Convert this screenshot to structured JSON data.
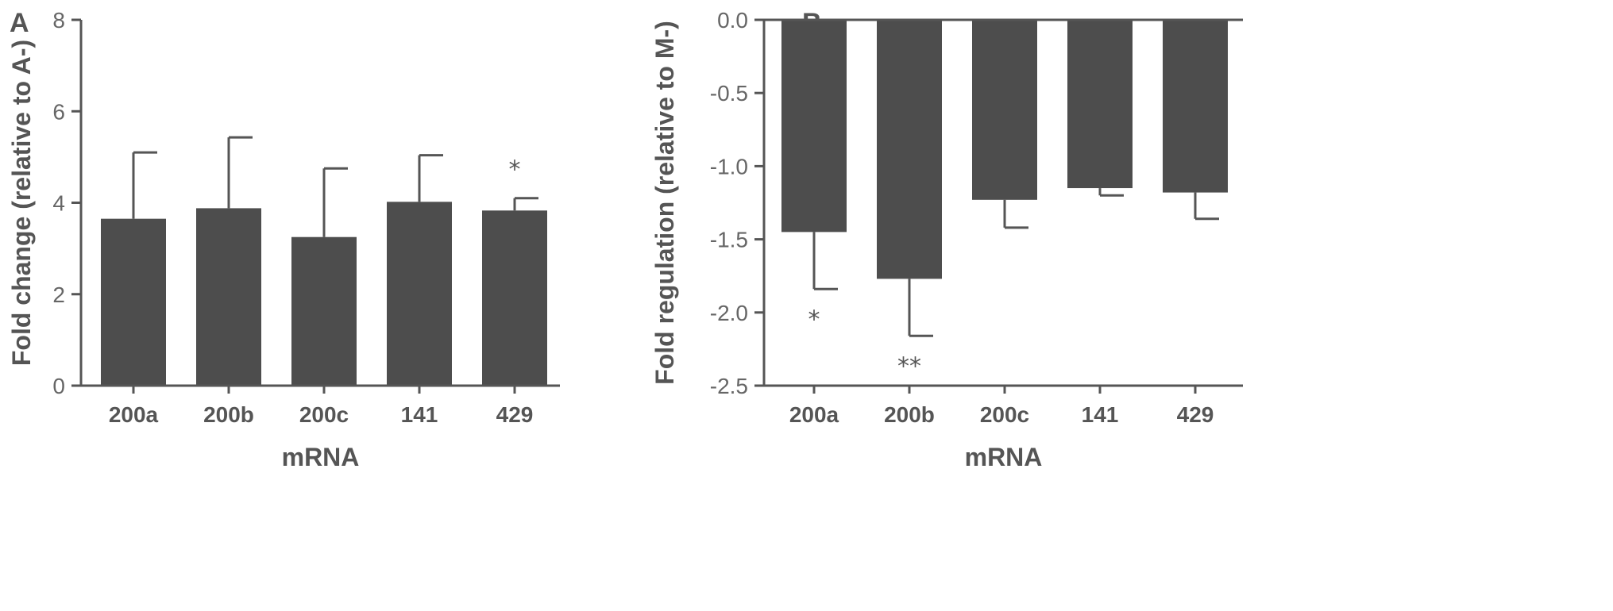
{
  "chart_data": [
    {
      "panel": "A",
      "type": "bar",
      "categories": [
        "200a",
        "200b",
        "200c",
        "141",
        "429"
      ],
      "values": [
        3.65,
        3.88,
        3.25,
        4.02,
        3.83
      ],
      "errors": [
        1.45,
        1.55,
        1.5,
        1.02,
        0.27
      ],
      "significance": [
        "",
        "",
        "",
        "",
        "*"
      ],
      "xlabel": "mRNA",
      "ylabel": "Fold change (relative to A-)",
      "ylim": [
        0,
        8
      ],
      "yticks": [
        0,
        2,
        4,
        6,
        8
      ],
      "ytick_labels": [
        "0",
        "2",
        "4",
        "6",
        "8"
      ],
      "bar_color": "#4d4d4d"
    },
    {
      "panel": "B",
      "type": "bar",
      "categories": [
        "200a",
        "200b",
        "200c",
        "141",
        "429"
      ],
      "values": [
        -1.45,
        -1.77,
        -1.23,
        -1.15,
        -1.18
      ],
      "errors": [
        0.39,
        0.39,
        0.19,
        0.05,
        0.18
      ],
      "significance": [
        "*",
        "**",
        "",
        "",
        ""
      ],
      "xlabel": "mRNA",
      "ylabel": "Fold regulation (relative to M-)",
      "ylim": [
        -2.5,
        0
      ],
      "yticks": [
        0,
        -0.5,
        -1,
        -1.5,
        -2,
        -2.5
      ],
      "ytick_labels": [
        "0.0",
        "-0.5",
        "-1.0",
        "-1.5",
        "-2.0",
        "-2.5"
      ],
      "bar_color": "#4d4d4d"
    }
  ]
}
